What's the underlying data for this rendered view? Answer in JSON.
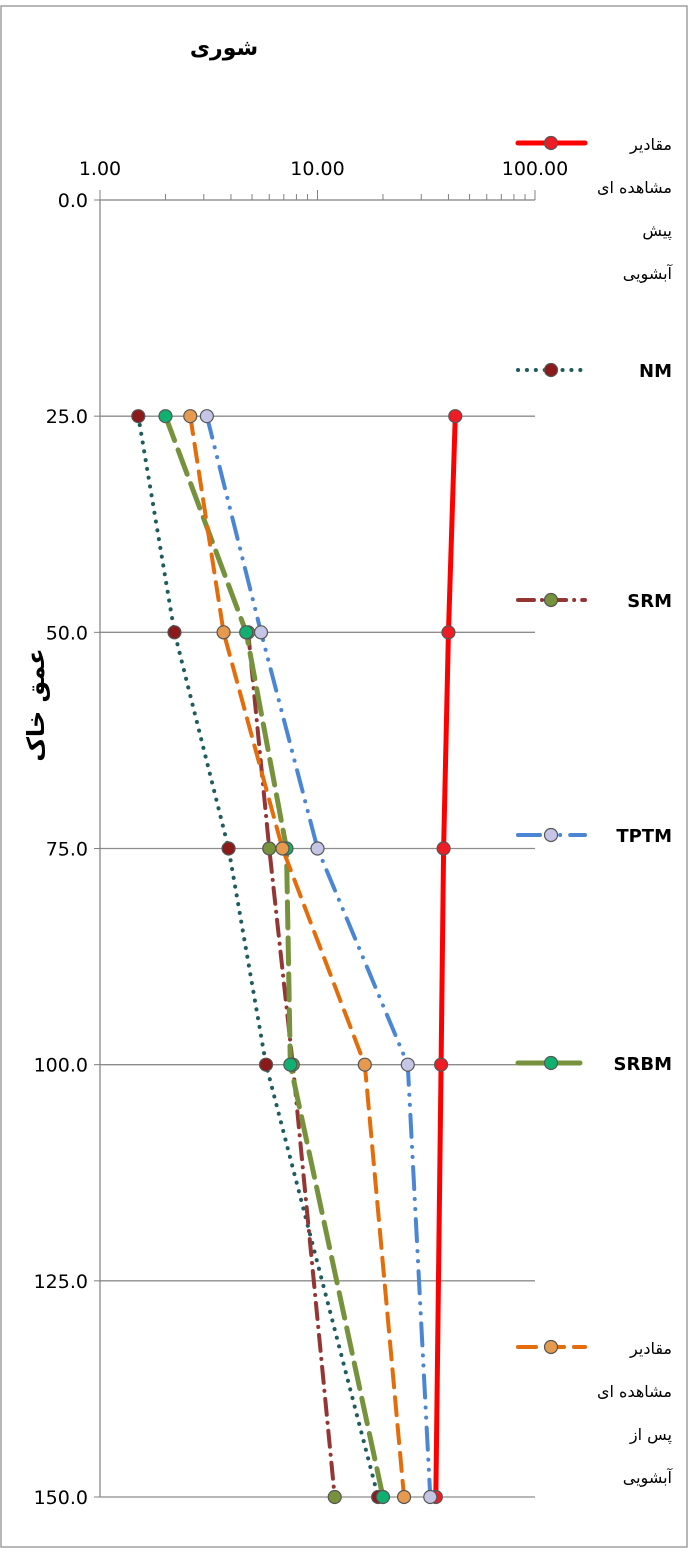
{
  "chart_data": {
    "type": "line",
    "title": "شوری",
    "ylabel": "عمق خاک",
    "xlabel": "",
    "x_scale": "log",
    "xlim": [
      1,
      100
    ],
    "ylim": [
      0,
      150
    ],
    "y_inverted": true,
    "x_tick_labels": [
      "1.00",
      "10.00",
      "100.00"
    ],
    "y_tick_labels": [
      "0.0",
      "25.0",
      "50.0",
      "75.0",
      "100.0",
      "125.0",
      "150.0"
    ],
    "grid": "horizontal",
    "legend_position": "right",
    "series": [
      {
        "name": "مقادیر مشاهده ای پیش آبشویی",
        "legend_lines": [
          "مقادیر",
          "مشاهده ای",
          "پیش",
          "آبشویی"
        ],
        "color": "#ff0000",
        "marker_fill": "#ee1c24",
        "style": "solid",
        "width": 5,
        "points": [
          {
            "x": 43,
            "y": 25
          },
          {
            "x": 40,
            "y": 50
          },
          {
            "x": 38,
            "y": 75
          },
          {
            "x": 37,
            "y": 100
          },
          {
            "x": 35,
            "y": 150
          }
        ]
      },
      {
        "name": "NM",
        "legend_lines": [
          "NM"
        ],
        "color": "#1f5c5e",
        "marker_fill": "#8b1a1a",
        "style": "dot",
        "width": 4,
        "points": [
          {
            "x": 1.5,
            "y": 25
          },
          {
            "x": 2.2,
            "y": 50
          },
          {
            "x": 3.9,
            "y": 75
          },
          {
            "x": 5.8,
            "y": 100
          },
          {
            "x": 19,
            "y": 150
          }
        ]
      },
      {
        "name": "SRM",
        "legend_lines": [
          "SRM"
        ],
        "color": "#943634",
        "marker_fill": "#76923c",
        "style": "dashdot",
        "width": 4,
        "points": [
          {
            "x": 4.8,
            "y": 50
          },
          {
            "x": 6,
            "y": 75
          },
          {
            "x": 7.7,
            "y": 100
          },
          {
            "x": 12,
            "y": 150
          }
        ]
      },
      {
        "name": "TPTM",
        "legend_lines": [
          "TPTM"
        ],
        "color": "#4a86d4",
        "marker_fill": "#c5c5e6",
        "style": "dashdotdot",
        "width": 4,
        "points": [
          {
            "x": 3.1,
            "y": 25
          },
          {
            "x": 5.5,
            "y": 50
          },
          {
            "x": 10,
            "y": 75
          },
          {
            "x": 26,
            "y": 100
          },
          {
            "x": 33,
            "y": 150
          }
        ]
      },
      {
        "name": "SRBM",
        "legend_lines": [
          "SRBM"
        ],
        "color": "#76923c",
        "marker_fill": "#10b070",
        "style": "longdash",
        "width": 5,
        "points": [
          {
            "x": 2,
            "y": 25
          },
          {
            "x": 4.7,
            "y": 50
          },
          {
            "x": 7.2,
            "y": 75
          },
          {
            "x": 7.5,
            "y": 100
          },
          {
            "x": 20,
            "y": 150
          }
        ]
      },
      {
        "name": "مقادیر مشاهده ای پس از آبشویی",
        "legend_lines": [
          "مقادیر",
          "مشاهده ای",
          "پس از",
          "آبشویی"
        ],
        "color": "#e46c0a",
        "marker_fill": "#e69a4d",
        "style": "dash",
        "width": 4,
        "points": [
          {
            "x": 2.6,
            "y": 25
          },
          {
            "x": 3.7,
            "y": 50
          },
          {
            "x": 6.9,
            "y": 75
          },
          {
            "x": 16.5,
            "y": 100
          },
          {
            "x": 25,
            "y": 150
          }
        ]
      }
    ]
  }
}
